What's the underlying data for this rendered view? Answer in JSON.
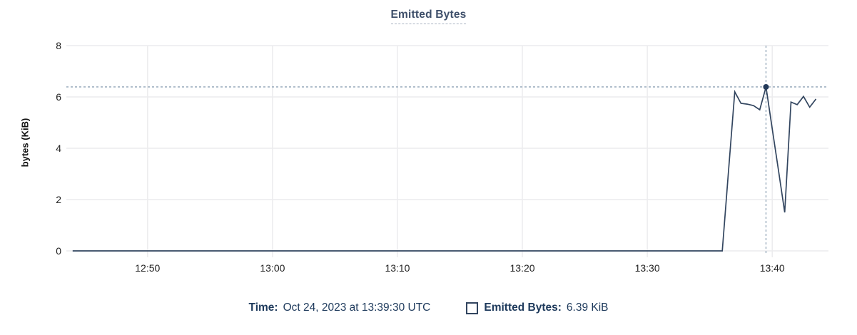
{
  "title": {
    "text": "Emitted Bytes"
  },
  "legend": {
    "time_label": "Time:",
    "time_value": "Oct 24, 2023 at 13:39:30 UTC",
    "series_label": "Emitted Bytes:",
    "series_value": "6.39 KiB"
  },
  "chart_data": {
    "type": "line",
    "title": "Emitted Bytes",
    "xlabel": "",
    "ylabel": "bytes (KiB)",
    "ylim": [
      0,
      8
    ],
    "y_ticks": [
      0,
      2,
      4,
      6,
      8
    ],
    "x_ticks": [
      "12:50",
      "13:00",
      "13:10",
      "13:20",
      "13:30",
      "13:40"
    ],
    "x_range": [
      "12:43:30",
      "13:44:30"
    ],
    "grid": true,
    "legend_position": "bottom",
    "series": [
      {
        "name": "Emitted Bytes",
        "points": [
          [
            "12:44:00",
            0
          ],
          [
            "13:36:00",
            0
          ],
          [
            "13:36:30",
            3.1
          ],
          [
            "13:37:00",
            6.2
          ],
          [
            "13:37:30",
            5.75
          ],
          [
            "13:38:00",
            5.72
          ],
          [
            "13:38:30",
            5.66
          ],
          [
            "13:39:00",
            5.5
          ],
          [
            "13:39:30",
            6.39
          ],
          [
            "13:40:00",
            4.76
          ],
          [
            "13:40:30",
            3.13
          ],
          [
            "13:41:00",
            1.5
          ],
          [
            "13:41:30",
            5.8
          ],
          [
            "13:42:00",
            5.7
          ],
          [
            "13:42:30",
            6.02
          ],
          [
            "13:43:00",
            5.6
          ],
          [
            "13:43:30",
            5.92
          ]
        ]
      }
    ],
    "hover_point": {
      "time": "13:39:30",
      "value": 6.39
    }
  },
  "colors": {
    "line": "#32455F",
    "dot": "#233A5A",
    "crosshair": "#8FA3B6",
    "grid": "#ECECEE",
    "tick_text": "#1F1F1F",
    "title_text": "#3E4F6A",
    "legend_text": "#1E3A5C"
  }
}
